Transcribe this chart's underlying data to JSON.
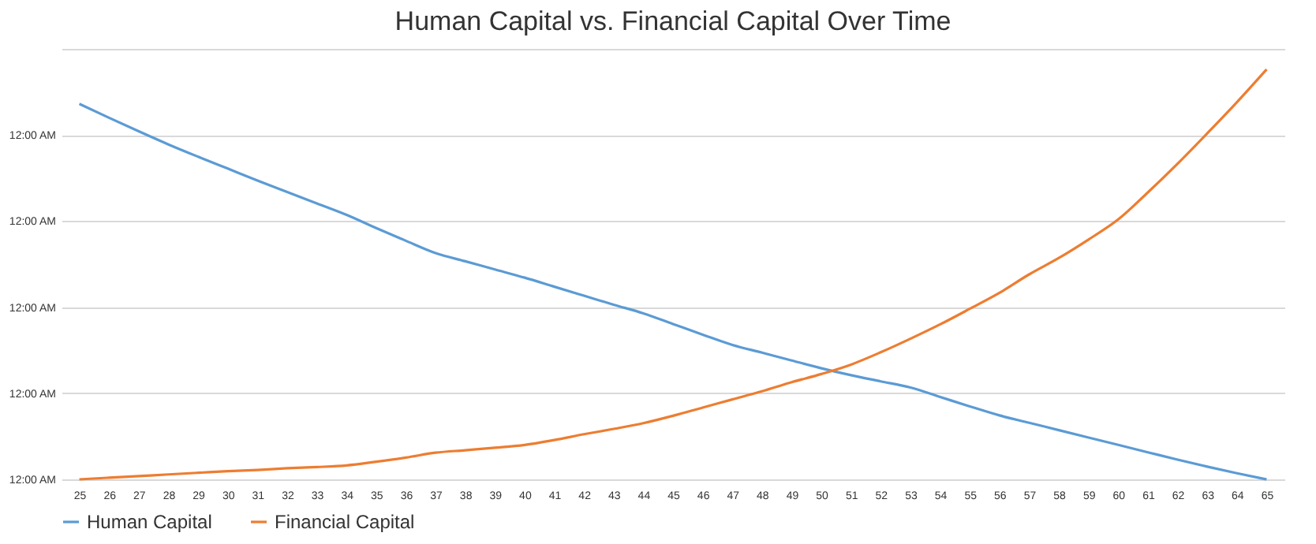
{
  "chart_data": {
    "type": "line",
    "title": "Human Capital vs. Financial Capital Over Time",
    "ylim": [
      0,
      1.05
    ],
    "categories": [
      "25",
      "26",
      "27",
      "28",
      "29",
      "30",
      "31",
      "32",
      "33",
      "34",
      "35",
      "36",
      "37",
      "38",
      "39",
      "40",
      "41",
      "42",
      "43",
      "44",
      "45",
      "46",
      "47",
      "48",
      "49",
      "50",
      "51",
      "52",
      "53",
      "54",
      "55",
      "56",
      "57",
      "58",
      "59",
      "60",
      "61",
      "62",
      "63",
      "64",
      "65"
    ],
    "series": [
      {
        "name": "Human Capital",
        "color": "#5b9bd5",
        "values": [
          0.916,
          0.882,
          0.849,
          0.817,
          0.787,
          0.758,
          0.729,
          0.701,
          0.673,
          0.645,
          0.613,
          0.582,
          0.552,
          0.532,
          0.512,
          0.492,
          0.47,
          0.448,
          0.426,
          0.405,
          0.379,
          0.353,
          0.328,
          0.309,
          0.29,
          0.271,
          0.254,
          0.239,
          0.224,
          0.201,
          0.178,
          0.156,
          0.138,
          0.12,
          0.102,
          0.084,
          0.066,
          0.048,
          0.031,
          0.015,
          0
        ]
      },
      {
        "name": "Financial Capital",
        "color": "#ed7d31",
        "values": [
          0,
          0.004,
          0.008,
          0.012,
          0.016,
          0.02,
          0.023,
          0.027,
          0.03,
          0.034,
          0.043,
          0.053,
          0.065,
          0.071,
          0.077,
          0.084,
          0.096,
          0.11,
          0.123,
          0.137,
          0.155,
          0.175,
          0.195,
          0.215,
          0.237,
          0.257,
          0.28,
          0.31,
          0.343,
          0.378,
          0.416,
          0.455,
          0.5,
          0.54,
          0.585,
          0.634,
          0.7,
          0.77,
          0.844,
          0.92,
          1
        ]
      }
    ],
    "yticks": [
      {
        "value": 0,
        "label": "12:00 AM"
      },
      {
        "value": 0.21,
        "label": "12:00 AM"
      },
      {
        "value": 0.42,
        "label": "12:00 AM"
      },
      {
        "value": 0.63,
        "label": "12:00 AM"
      },
      {
        "value": 0.84,
        "label": "12:00 AM"
      },
      {
        "value": 1.05,
        "label": null
      }
    ],
    "grid": "y",
    "legend": "bottom",
    "marker": "none",
    "line_style": "solid"
  }
}
